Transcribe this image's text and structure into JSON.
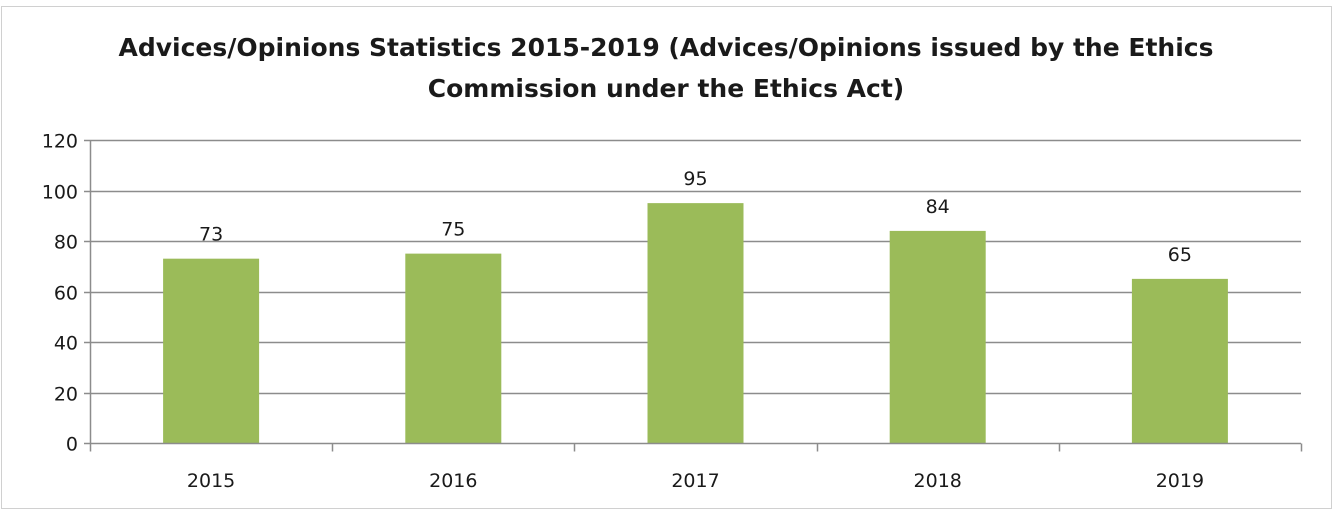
{
  "chart_data": {
    "type": "bar",
    "title_lines": [
      "Advices/Opinions Statistics 2015-2019 (Advices/Opinions issued by the Ethics",
      "Commission under the Ethics Act)"
    ],
    "categories": [
      "2015",
      "2016",
      "2017",
      "2018",
      "2019"
    ],
    "values": [
      73,
      75,
      95,
      84,
      65
    ],
    "data_labels": [
      "73",
      "75",
      "95",
      "84",
      "65"
    ],
    "ylim": [
      0,
      120
    ],
    "y_ticks": [
      0,
      20,
      40,
      60,
      80,
      100,
      120
    ],
    "y_tick_labels": [
      "0",
      "20",
      "40",
      "60",
      "80",
      "100",
      "120"
    ],
    "xlabel": "",
    "ylabel": "",
    "grid": true,
    "legend": "none",
    "colors": {
      "bar": "#9bbb59",
      "grid": "#8c8c8c",
      "axis": "#8c8c8c",
      "border": "#d0d0d0",
      "text": "#1a1a1a"
    }
  }
}
